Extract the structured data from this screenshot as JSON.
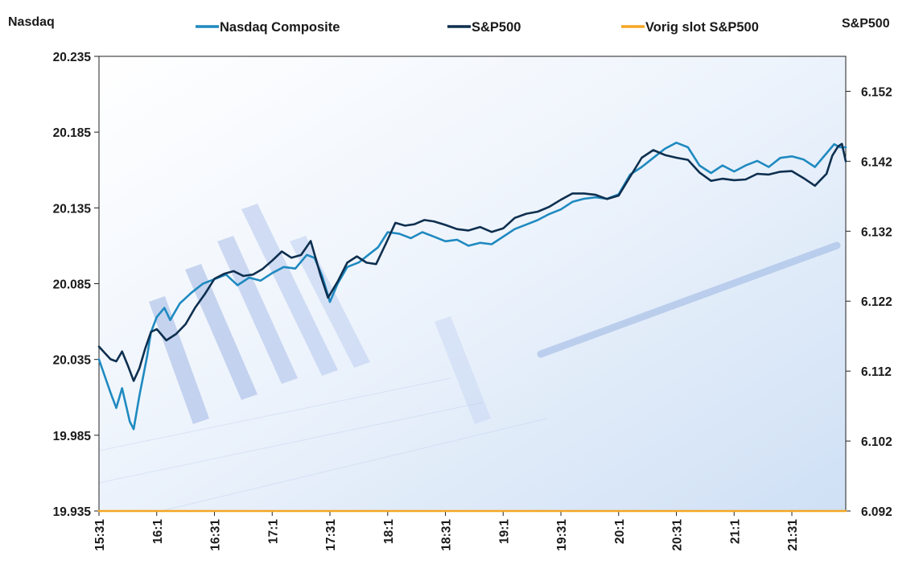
{
  "chart_data": {
    "type": "line",
    "y_left_label": "Nasdaq",
    "y_right_label": "S&P500",
    "y_left_range": [
      19935,
      20235
    ],
    "y_right_range": [
      6092,
      6157
    ],
    "y_left_ticks": [
      "20.235",
      "20.185",
      "20.135",
      "20.085",
      "20.035",
      "19.985",
      "19.935"
    ],
    "y_left_tick_values": [
      20235,
      20185,
      20135,
      20085,
      20035,
      19985,
      19935
    ],
    "y_right_ticks": [
      "6.152",
      "6.142",
      "6.132",
      "6.122",
      "6.112",
      "6.102",
      "6.092"
    ],
    "y_right_tick_values": [
      6152,
      6142,
      6132,
      6122,
      6112,
      6102,
      6092
    ],
    "x_tick_labels": [
      "15:31",
      "16:1",
      "16:31",
      "17:1",
      "17:31",
      "18:1",
      "18:31",
      "19:1",
      "19:31",
      "20:1",
      "20:31",
      "21:1",
      "21:31"
    ],
    "x_tick_minutes": [
      "15:31",
      "16:01",
      "16:31",
      "17:01",
      "17:31",
      "18:01",
      "18:31",
      "19:01",
      "19:31",
      "20:01",
      "20:31",
      "21:01",
      "21:31"
    ],
    "x_range": [
      "15:31",
      "21:59"
    ],
    "grid": false,
    "legend_position": "top",
    "series": [
      {
        "name": "Nasdaq Composite",
        "axis": "left",
        "color": "#1f8ac0",
        "points": [
          [
            "15:31",
            20035
          ],
          [
            "15:37",
            20013
          ],
          [
            "15:40",
            20003
          ],
          [
            "15:43",
            20016
          ],
          [
            "15:47",
            19994
          ],
          [
            "15:49",
            19989
          ],
          [
            "15:52",
            20011
          ],
          [
            "15:56",
            20037
          ],
          [
            "15:58",
            20053
          ],
          [
            "16:01",
            20063
          ],
          [
            "16:05",
            20069
          ],
          [
            "16:08",
            20061
          ],
          [
            "16:13",
            20072
          ],
          [
            "16:19",
            20079
          ],
          [
            "16:25",
            20085
          ],
          [
            "16:31",
            20088
          ],
          [
            "16:37",
            20091
          ],
          [
            "16:43",
            20084
          ],
          [
            "16:49",
            20089
          ],
          [
            "16:55",
            20087
          ],
          [
            "17:01",
            20092
          ],
          [
            "17:07",
            20096
          ],
          [
            "17:13",
            20095
          ],
          [
            "17:19",
            20104
          ],
          [
            "17:23",
            20102
          ],
          [
            "17:27",
            20090
          ],
          [
            "17:31",
            20073
          ],
          [
            "17:35",
            20085
          ],
          [
            "17:40",
            20096
          ],
          [
            "17:46",
            20099
          ],
          [
            "17:51",
            20104
          ],
          [
            "17:56",
            20109
          ],
          [
            "18:01",
            20119
          ],
          [
            "18:07",
            20118
          ],
          [
            "18:13",
            20115
          ],
          [
            "18:19",
            20119
          ],
          [
            "18:25",
            20116
          ],
          [
            "18:31",
            20113
          ],
          [
            "18:37",
            20114
          ],
          [
            "18:43",
            20110
          ],
          [
            "18:49",
            20112
          ],
          [
            "18:55",
            20111
          ],
          [
            "19:01",
            20116
          ],
          [
            "19:07",
            20121
          ],
          [
            "19:13",
            20124
          ],
          [
            "19:19",
            20127
          ],
          [
            "19:25",
            20131
          ],
          [
            "19:31",
            20134
          ],
          [
            "19:37",
            20139
          ],
          [
            "19:43",
            20141
          ],
          [
            "19:49",
            20142
          ],
          [
            "19:55",
            20141
          ],
          [
            "20:01",
            20144
          ],
          [
            "20:07",
            20157
          ],
          [
            "20:13",
            20162
          ],
          [
            "20:19",
            20168
          ],
          [
            "20:25",
            20174
          ],
          [
            "20:31",
            20178
          ],
          [
            "20:37",
            20175
          ],
          [
            "20:43",
            20163
          ],
          [
            "20:49",
            20158
          ],
          [
            "20:55",
            20163
          ],
          [
            "21:01",
            20159
          ],
          [
            "21:07",
            20163
          ],
          [
            "21:13",
            20166
          ],
          [
            "21:19",
            20162
          ],
          [
            "21:25",
            20168
          ],
          [
            "21:31",
            20169
          ],
          [
            "21:37",
            20167
          ],
          [
            "21:43",
            20162
          ],
          [
            "21:49",
            20171
          ],
          [
            "21:53",
            20177
          ],
          [
            "21:56",
            20175
          ],
          [
            "21:59",
            20175
          ]
        ]
      },
      {
        "name": "S&P500",
        "axis": "right",
        "color": "#0e2f4f",
        "points": [
          [
            "15:31",
            6115.5
          ],
          [
            "15:34",
            6114.6
          ],
          [
            "15:37",
            6113.7
          ],
          [
            "15:40",
            6113.4
          ],
          [
            "15:43",
            6114.8
          ],
          [
            "15:46",
            6112.8
          ],
          [
            "15:49",
            6110.6
          ],
          [
            "15:52",
            6112.4
          ],
          [
            "15:55",
            6115.2
          ],
          [
            "15:58",
            6117.6
          ],
          [
            "16:01",
            6118.0
          ],
          [
            "16:06",
            6116.4
          ],
          [
            "16:11",
            6117.3
          ],
          [
            "16:16",
            6118.7
          ],
          [
            "16:21",
            6121.1
          ],
          [
            "16:26",
            6123.0
          ],
          [
            "16:31",
            6125.2
          ],
          [
            "16:36",
            6125.9
          ],
          [
            "16:41",
            6126.3
          ],
          [
            "16:46",
            6125.6
          ],
          [
            "16:51",
            6125.8
          ],
          [
            "16:56",
            6126.6
          ],
          [
            "17:01",
            6127.8
          ],
          [
            "17:06",
            6129.1
          ],
          [
            "17:11",
            6128.2
          ],
          [
            "17:16",
            6128.6
          ],
          [
            "17:21",
            6130.6
          ],
          [
            "17:26",
            6125.8
          ],
          [
            "17:30",
            6122.5
          ],
          [
            "17:35",
            6124.8
          ],
          [
            "17:40",
            6127.5
          ],
          [
            "17:45",
            6128.4
          ],
          [
            "17:50",
            6127.5
          ],
          [
            "17:55",
            6127.3
          ],
          [
            "18:00",
            6130.2
          ],
          [
            "18:05",
            6133.2
          ],
          [
            "18:10",
            6132.8
          ],
          [
            "18:15",
            6133.0
          ],
          [
            "18:20",
            6133.6
          ],
          [
            "18:25",
            6133.4
          ],
          [
            "18:31",
            6132.9
          ],
          [
            "18:37",
            6132.3
          ],
          [
            "18:43",
            6132.1
          ],
          [
            "18:49",
            6132.6
          ],
          [
            "18:55",
            6131.9
          ],
          [
            "19:01",
            6132.4
          ],
          [
            "19:07",
            6133.9
          ],
          [
            "19:13",
            6134.5
          ],
          [
            "19:19",
            6134.8
          ],
          [
            "19:25",
            6135.5
          ],
          [
            "19:31",
            6136.5
          ],
          [
            "19:37",
            6137.4
          ],
          [
            "19:43",
            6137.4
          ],
          [
            "19:49",
            6137.2
          ],
          [
            "19:55",
            6136.6
          ],
          [
            "20:01",
            6137.1
          ],
          [
            "20:07",
            6139.8
          ],
          [
            "20:13",
            6142.5
          ],
          [
            "20:19",
            6143.6
          ],
          [
            "20:25",
            6142.9
          ],
          [
            "20:31",
            6142.5
          ],
          [
            "20:37",
            6142.2
          ],
          [
            "20:43",
            6140.4
          ],
          [
            "20:49",
            6139.2
          ],
          [
            "20:55",
            6139.5
          ],
          [
            "21:01",
            6139.3
          ],
          [
            "21:07",
            6139.4
          ],
          [
            "21:13",
            6140.2
          ],
          [
            "21:19",
            6140.1
          ],
          [
            "21:25",
            6140.5
          ],
          [
            "21:31",
            6140.6
          ],
          [
            "21:37",
            6139.6
          ],
          [
            "21:43",
            6138.5
          ],
          [
            "21:49",
            6140.2
          ],
          [
            "21:52",
            6142.8
          ],
          [
            "21:55",
            6144.1
          ],
          [
            "21:57",
            6144.5
          ],
          [
            "21:59",
            6142.0
          ]
        ]
      },
      {
        "name": "Vorig slot S&P500",
        "axis": "right",
        "color": "#f5a623",
        "points": [
          [
            "15:31",
            6092
          ],
          [
            "21:59",
            6092
          ]
        ]
      }
    ]
  }
}
